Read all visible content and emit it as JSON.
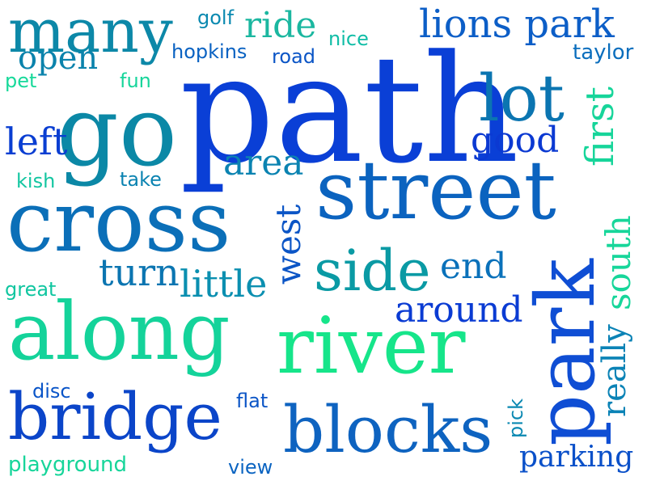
{
  "words": [
    {
      "text": "path",
      "color": "#0a3fd6"
    },
    {
      "text": "go",
      "color": "#0b88a6"
    },
    {
      "text": "street",
      "color": "#0b63bf"
    },
    {
      "text": "cross",
      "color": "#0b6fb8"
    },
    {
      "text": "along",
      "color": "#14d39a"
    },
    {
      "text": "river",
      "color": "#16e58a"
    },
    {
      "text": "park",
      "color": "#0f4ed4"
    },
    {
      "text": "bridge",
      "color": "#0b45c9"
    },
    {
      "text": "blocks",
      "color": "#0e63c0"
    },
    {
      "text": "many",
      "color": "#0c88a8"
    },
    {
      "text": "lot",
      "color": "#0b75b1"
    },
    {
      "text": "side",
      "color": "#0a9aa4"
    },
    {
      "text": "lions park",
      "color": "#0c5ec7"
    },
    {
      "text": "around",
      "color": "#0a3bd3"
    },
    {
      "text": "turn",
      "color": "#0b75b1"
    },
    {
      "text": "little",
      "color": "#0b8fb0"
    },
    {
      "text": "end",
      "color": "#0a71ba"
    },
    {
      "text": "area",
      "color": "#0b83b1"
    },
    {
      "text": "good",
      "color": "#0b39d2"
    },
    {
      "text": "left",
      "color": "#0a3ed2"
    },
    {
      "text": "ride",
      "color": "#1bb7a0"
    },
    {
      "text": "open",
      "color": "#0b83ac"
    },
    {
      "text": "first",
      "color": "#17d59a"
    },
    {
      "text": "west",
      "color": "#0b55c6"
    },
    {
      "text": "south",
      "color": "#17d69a"
    },
    {
      "text": "really",
      "color": "#0b83b6"
    },
    {
      "text": "parking",
      "color": "#0a50c9"
    },
    {
      "text": "golf",
      "color": "#0a89b0"
    },
    {
      "text": "hopkins",
      "color": "#0a62c2"
    },
    {
      "text": "nice",
      "color": "#10bda6"
    },
    {
      "text": "road",
      "color": "#0b55c6"
    },
    {
      "text": "taylor",
      "color": "#0b6ebd"
    },
    {
      "text": "pet",
      "color": "#17d99a"
    },
    {
      "text": "fun",
      "color": "#17d59b"
    },
    {
      "text": "kish",
      "color": "#13c6a1"
    },
    {
      "text": "take",
      "color": "#0b83b1"
    },
    {
      "text": "great",
      "color": "#10c6a0"
    },
    {
      "text": "disc",
      "color": "#0a55c8"
    },
    {
      "text": "flat",
      "color": "#0b55c6"
    },
    {
      "text": "pick",
      "color": "#0a88b2"
    },
    {
      "text": "playground",
      "color": "#17d59a"
    },
    {
      "text": "view",
      "color": "#0b64c1"
    }
  ]
}
